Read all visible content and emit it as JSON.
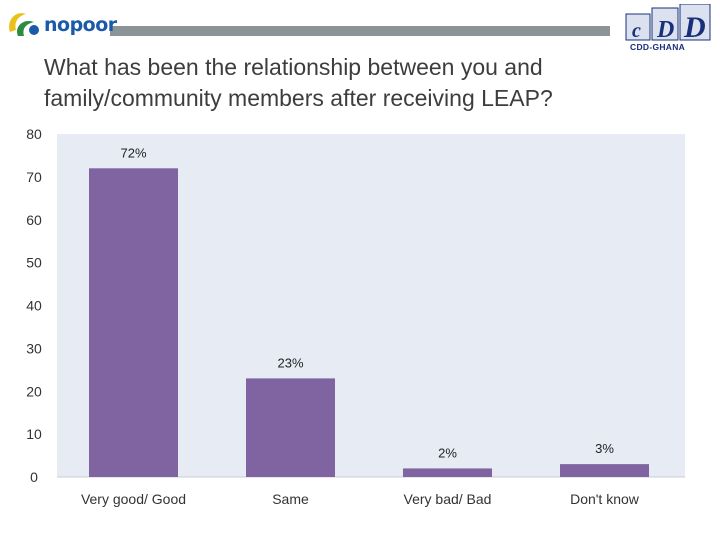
{
  "logos": {
    "left_brand": "nopoor",
    "right_letters": "cDD",
    "right_org": "CDD-GHANA"
  },
  "colors": {
    "bar": "#8064a2",
    "plot_bg": "#e6ebf4",
    "header_bar": "#8b9598"
  },
  "chart_data": {
    "type": "bar",
    "title": "What has been the relationship between you and family/community members after receiving LEAP?",
    "categories": [
      "Very good/ Good",
      "Same",
      "Very bad/ Bad",
      "Don't know"
    ],
    "values": [
      72,
      23,
      2,
      3
    ],
    "data_labels": [
      "72%",
      "23%",
      "2%",
      "3%"
    ],
    "ylim": [
      0,
      80
    ],
    "yticks": [
      "0",
      "10",
      "20",
      "30",
      "40",
      "50",
      "60",
      "70",
      "80"
    ],
    "grid": false,
    "legend": "none"
  }
}
